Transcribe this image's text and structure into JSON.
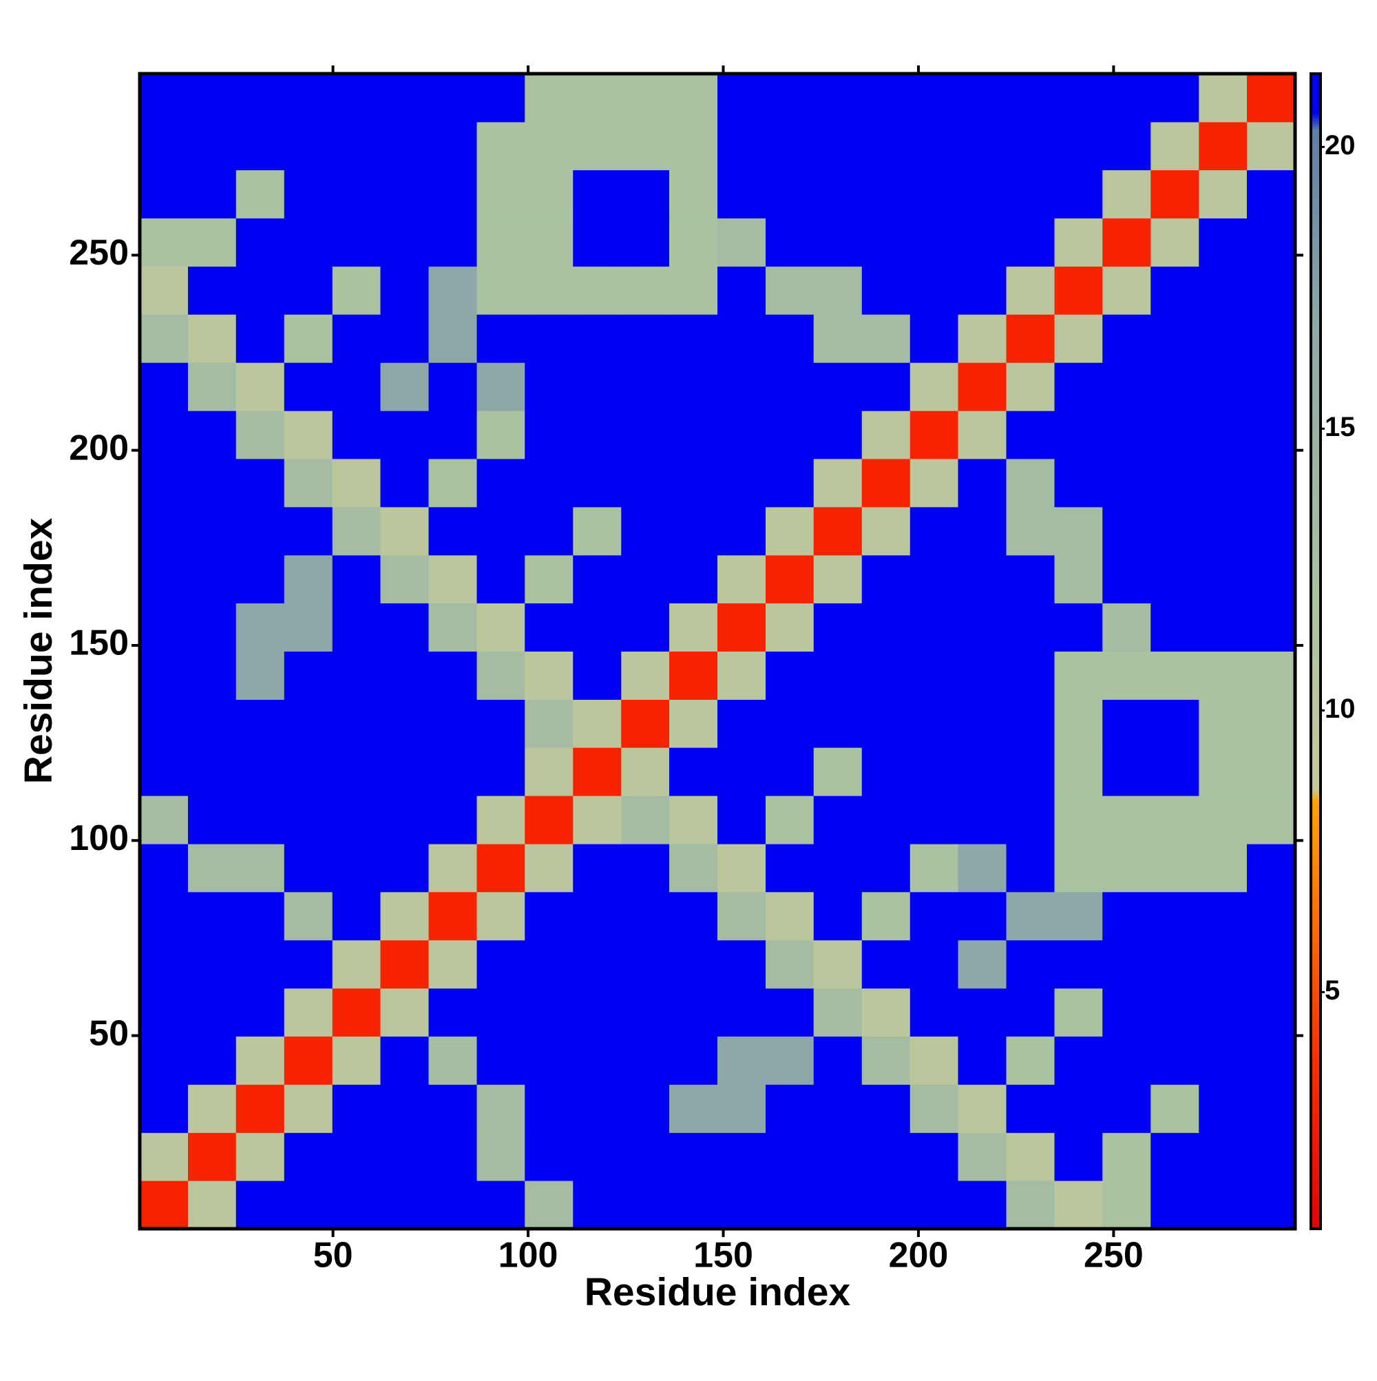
{
  "chart_data": {
    "type": "heatmap",
    "xlabel": "Residue index",
    "ylabel": "Residue index",
    "x": [
      6.7,
      19,
      31.3,
      43.7,
      56,
      68.3,
      80.7,
      93,
      105.3,
      117.7,
      130,
      142.3,
      154.7,
      167,
      179.3,
      191.7,
      204,
      216.3,
      228.7,
      241,
      253.3,
      265.7,
      278,
      290.3
    ],
    "y": [
      6.7,
      19,
      31.3,
      43.7,
      56,
      68.3,
      80.7,
      93,
      105.3,
      117.7,
      130,
      142.3,
      154.7,
      167,
      179.3,
      191.7,
      204,
      216.3,
      228.7,
      241,
      253.3,
      265.7,
      278,
      290.3
    ],
    "z": [
      [
        3,
        10,
        21,
        21,
        21,
        21,
        21,
        21,
        13,
        21,
        21,
        21,
        21,
        21,
        21,
        21,
        21,
        21,
        13,
        10,
        12,
        21,
        21,
        21
      ],
      [
        10,
        3,
        10,
        21,
        21,
        21,
        21,
        13,
        21,
        21,
        21,
        21,
        21,
        21,
        21,
        21,
        21,
        13,
        10,
        21,
        12,
        21,
        21,
        21
      ],
      [
        21,
        10,
        3,
        10,
        21,
        21,
        21,
        13,
        21,
        21,
        21,
        17,
        17,
        21,
        21,
        21,
        13,
        10,
        21,
        21,
        21,
        12,
        21,
        21
      ],
      [
        21,
        21,
        10,
        3,
        10,
        21,
        13,
        21,
        21,
        21,
        21,
        21,
        17,
        17,
        21,
        13,
        10,
        21,
        12,
        21,
        21,
        21,
        21,
        21
      ],
      [
        21,
        21,
        21,
        10,
        3,
        10,
        21,
        21,
        21,
        21,
        21,
        21,
        21,
        21,
        13,
        10,
        21,
        21,
        21,
        12,
        21,
        21,
        21,
        21
      ],
      [
        21,
        21,
        21,
        21,
        10,
        3,
        10,
        21,
        21,
        21,
        21,
        21,
        21,
        13,
        10,
        21,
        21,
        17,
        21,
        21,
        21,
        21,
        21,
        21
      ],
      [
        21,
        21,
        21,
        13,
        21,
        10,
        3,
        10,
        21,
        21,
        21,
        21,
        13,
        10,
        21,
        12,
        21,
        21,
        17,
        17,
        21,
        21,
        21,
        21
      ],
      [
        21,
        13,
        13,
        21,
        21,
        21,
        10,
        3,
        10,
        21,
        21,
        13,
        10,
        21,
        21,
        21,
        12,
        17,
        21,
        12,
        12,
        12,
        12,
        21
      ],
      [
        13,
        21,
        21,
        21,
        21,
        21,
        21,
        10,
        3,
        10,
        13,
        10,
        21,
        12,
        21,
        21,
        21,
        21,
        21,
        12,
        12,
        12,
        12,
        12
      ],
      [
        21,
        21,
        21,
        21,
        21,
        21,
        21,
        21,
        10,
        3,
        10,
        21,
        21,
        21,
        12,
        21,
        21,
        21,
        21,
        12,
        21,
        21,
        12,
        12
      ],
      [
        21,
        21,
        21,
        21,
        21,
        21,
        21,
        21,
        13,
        10,
        3,
        10,
        21,
        21,
        21,
        21,
        21,
        21,
        21,
        12,
        21,
        21,
        12,
        12
      ],
      [
        21,
        21,
        17,
        21,
        21,
        21,
        21,
        13,
        10,
        21,
        10,
        3,
        10,
        21,
        21,
        21,
        21,
        21,
        21,
        12,
        12,
        12,
        12,
        12
      ],
      [
        21,
        21,
        17,
        17,
        21,
        21,
        13,
        10,
        21,
        21,
        21,
        10,
        3,
        10,
        21,
        21,
        21,
        21,
        21,
        21,
        13,
        21,
        21,
        21
      ],
      [
        21,
        21,
        21,
        17,
        21,
        13,
        10,
        21,
        12,
        21,
        21,
        21,
        10,
        3,
        10,
        21,
        21,
        21,
        21,
        13,
        21,
        21,
        21,
        21
      ],
      [
        21,
        21,
        21,
        21,
        13,
        10,
        21,
        21,
        21,
        12,
        21,
        21,
        21,
        10,
        3,
        10,
        21,
        21,
        13,
        13,
        21,
        21,
        21,
        21
      ],
      [
        21,
        21,
        21,
        13,
        10,
        21,
        12,
        21,
        21,
        21,
        21,
        21,
        21,
        21,
        10,
        3,
        10,
        21,
        13,
        21,
        21,
        21,
        21,
        21
      ],
      [
        21,
        21,
        13,
        10,
        21,
        21,
        21,
        12,
        21,
        21,
        21,
        21,
        21,
        21,
        21,
        10,
        3,
        10,
        21,
        21,
        21,
        21,
        21,
        21
      ],
      [
        21,
        13,
        10,
        21,
        21,
        17,
        21,
        17,
        21,
        21,
        21,
        21,
        21,
        21,
        21,
        21,
        10,
        3,
        10,
        21,
        21,
        21,
        21,
        21
      ],
      [
        13,
        10,
        21,
        12,
        21,
        21,
        17,
        21,
        21,
        21,
        21,
        21,
        21,
        21,
        13,
        13,
        21,
        10,
        3,
        10,
        21,
        21,
        21,
        21
      ],
      [
        10,
        21,
        21,
        21,
        12,
        21,
        17,
        12,
        12,
        12,
        12,
        12,
        21,
        13,
        13,
        21,
        21,
        21,
        10,
        3,
        10,
        21,
        21,
        21
      ],
      [
        12,
        12,
        21,
        21,
        21,
        21,
        21,
        12,
        12,
        21,
        21,
        12,
        13,
        21,
        21,
        21,
        21,
        21,
        21,
        10,
        3,
        10,
        21,
        21
      ],
      [
        21,
        21,
        12,
        21,
        21,
        21,
        21,
        12,
        12,
        21,
        21,
        12,
        21,
        21,
        21,
        21,
        21,
        21,
        21,
        21,
        10,
        3,
        10,
        21
      ],
      [
        21,
        21,
        21,
        21,
        21,
        21,
        21,
        12,
        12,
        12,
        12,
        12,
        21,
        21,
        21,
        21,
        21,
        21,
        21,
        21,
        21,
        10,
        3,
        10
      ],
      [
        21,
        21,
        21,
        21,
        21,
        21,
        21,
        21,
        12,
        12,
        12,
        12,
        21,
        21,
        21,
        21,
        21,
        21,
        21,
        21,
        21,
        21,
        10,
        3
      ]
    ],
    "xlim": [
      0.5,
      296.5
    ],
    "ylim": [
      0.5,
      296.5
    ],
    "xticks": [
      50,
      100,
      150,
      200,
      250
    ],
    "yticks": [
      50,
      100,
      150,
      200,
      250
    ],
    "zlim": [
      0.8,
      21.3
    ],
    "zticks": [
      5,
      10,
      15,
      20
    ],
    "colorscale": [
      [
        0.8,
        "#e60000"
      ],
      [
        4,
        "#ff3300"
      ],
      [
        8.4,
        "#ffa500"
      ],
      [
        8.6,
        "#c8c89a"
      ],
      [
        12,
        "#a9c3a0"
      ],
      [
        17,
        "#8ea7a8"
      ],
      [
        20.3,
        "#5d7ea6"
      ],
      [
        20.6,
        "#0000f5"
      ],
      [
        21.3,
        "#0000f5"
      ]
    ]
  }
}
